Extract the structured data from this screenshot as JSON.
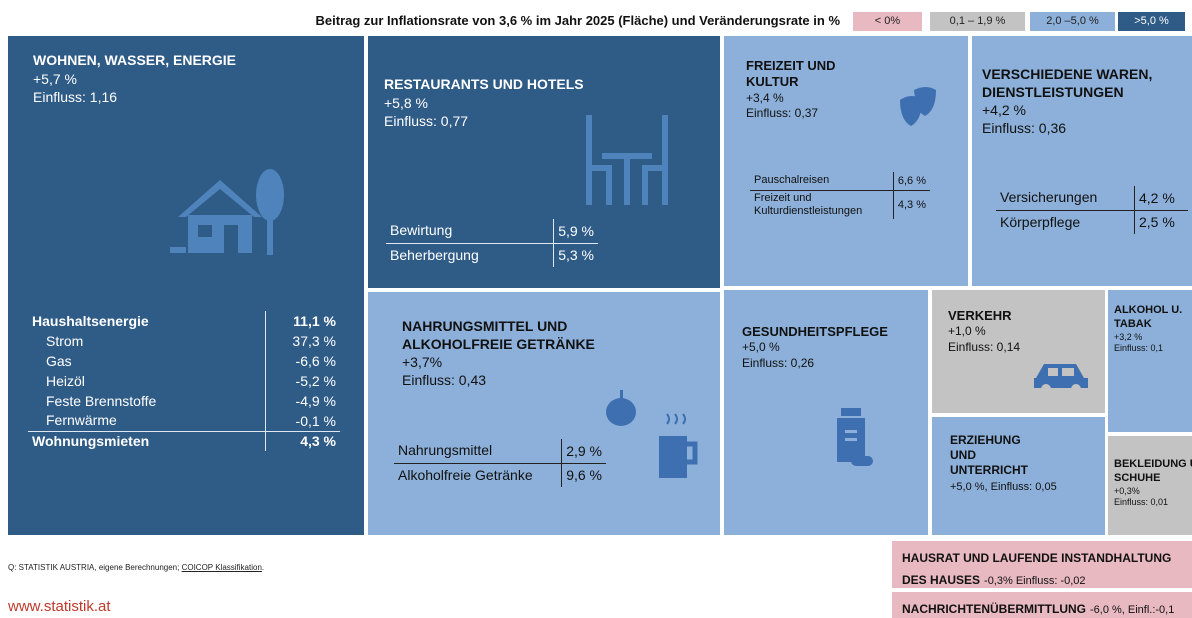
{
  "chart_data": {
    "type": "treemap",
    "title": "Beitrag zur Inflationsrate von 3,6 % im Jahr 2025 (Fläche) und Veränderungsrate in %",
    "legend": [
      {
        "label": "< 0%",
        "color": "#e8b9c1"
      },
      {
        "label": "0,1 – 1,9 %",
        "color": "#c3c3c3"
      },
      {
        "label": "2,0 –5,0 %",
        "color": "#8cb0d9"
      },
      {
        "label": ">5,0 %",
        "color": "#2f5b87"
      }
    ],
    "items": [
      {
        "name": "WOHNEN, WASSER, ENERGIE",
        "change_label": "+5,7 %",
        "influence": 1.16,
        "influence_label": "Einfluss: 1,16",
        "color": "#2f5b87",
        "rows": [
          {
            "name": "Haushaltsenergie",
            "value": "11,1 %"
          },
          {
            "name": "Strom",
            "value": "37,3 %"
          },
          {
            "name": "Gas",
            "value": "-6,6 %"
          },
          {
            "name": "Heizöl",
            "value": "-5,2 %"
          },
          {
            "name": "Feste Brennstoffe",
            "value": "-4,9 %"
          },
          {
            "name": "Fernwärme",
            "value": "-0,1 %"
          },
          {
            "name": "Wohnungsmieten",
            "value": "4,3 %"
          }
        ]
      },
      {
        "name": "RESTAURANTS UND HOTELS",
        "change_label": "+5,8 %",
        "influence": 0.77,
        "influence_label": "Einfluss: 0,77",
        "color": "#2f5b87",
        "rows": [
          {
            "name": "Bewirtung",
            "value": "5,9 %"
          },
          {
            "name": "Beherbergung",
            "value": "5,3 %"
          }
        ]
      },
      {
        "name": "NAHRUNGSMITTEL UND ALKOHOLFREIE GETRÄNKE",
        "change_label": "+3,7%",
        "influence": 0.43,
        "influence_label": "Einfluss: 0,43",
        "color": "#8cb0d9",
        "rows": [
          {
            "name": "Nahrungsmittel",
            "value": "2,9 %"
          },
          {
            "name": "Alkoholfreie Getränke",
            "value": "9,6 %"
          }
        ]
      },
      {
        "name": "FREIZEIT UND KULTUR",
        "change_label": "+3,4 %",
        "influence": 0.37,
        "influence_label": "Einfluss: 0,37",
        "color": "#8cb0d9",
        "rows": [
          {
            "name": "Pauschalreisen",
            "value": "6,6 %"
          },
          {
            "name": "Freizeit und Kulturdienstleistungen",
            "value": "4,3 %"
          }
        ]
      },
      {
        "name": "VERSCHIEDENE WAREN, DIENSTLEISTUNGEN",
        "change_label": "+4,2 %",
        "influence": 0.36,
        "influence_label": "Einfluss: 0,36",
        "color": "#8cb0d9",
        "rows": [
          {
            "name": "Versicherungen",
            "value": "4,2 %"
          },
          {
            "name": "Körperpflege",
            "value": "2,5 %"
          }
        ]
      },
      {
        "name": "GESUNDHEITSPFLEGE",
        "change_label": "+5,0 %",
        "influence": 0.26,
        "influence_label": "Einfluss: 0,26",
        "color": "#8cb0d9"
      },
      {
        "name": "VERKEHR",
        "change_label": "+1,0 %",
        "influence": 0.14,
        "influence_label": "Einfluss: 0,14",
        "color": "#c3c3c3"
      },
      {
        "name": "ALKOHOL U. TABAK",
        "change_label": "+3,2 %",
        "influence": 0.1,
        "influence_label": "Einfluss: 0,1",
        "color": "#8cb0d9"
      },
      {
        "name": "ERZIEHUNG UND UNTERRICHT",
        "detail": "+5,0 %, Einfluss: 0,05",
        "influence": 0.05,
        "color": "#8cb0d9"
      },
      {
        "name": "BEKLEIDUNG UND SCHUHE",
        "change_label": "+0,3%",
        "influence": 0.01,
        "influence_label": "Einfluss: 0,01",
        "color": "#c3c3c3"
      },
      {
        "name": "HAUSRAT UND LAUFENDE INSTANDHALTUNG DES HAUSES",
        "detail": "-0,3% Einfluss: -0,02",
        "influence": -0.02,
        "color": "#e8b9c1"
      },
      {
        "name": "NACHRICHTENÜBERMITTLUNG",
        "detail": "-6,0 %, Einfl.:-0,1",
        "influence": -0.1,
        "color": "#e8b9c1"
      }
    ],
    "source": "Q: STATISTIK AUSTRIA, eigene Berechnungen; ",
    "source_link": "COICOP Klassifikation",
    "source_end": ".",
    "website": "www.statistik.at"
  }
}
